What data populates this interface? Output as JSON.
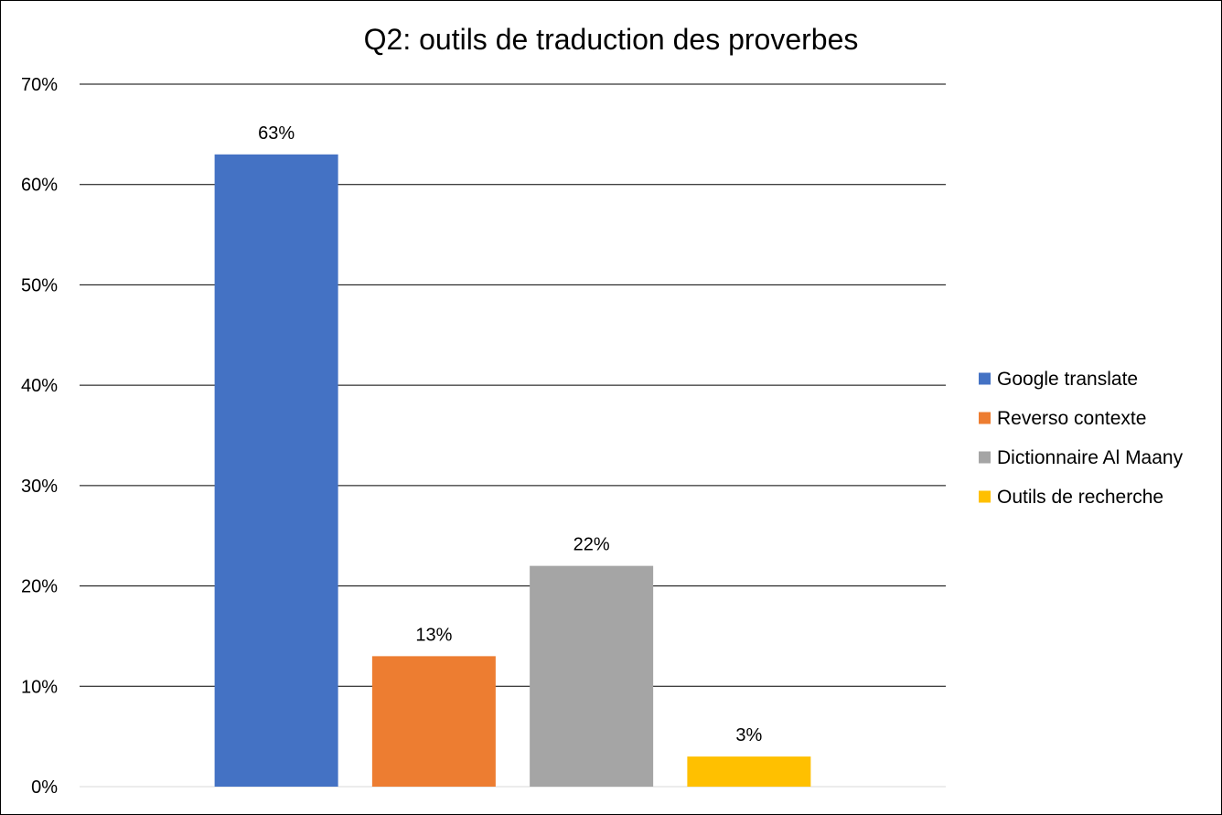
{
  "chart_data": {
    "type": "bar",
    "title": "Q2: outils de traduction des proverbes",
    "xlabel": "",
    "ylabel": "",
    "ylim": [
      0,
      70
    ],
    "yticks": [
      0,
      10,
      20,
      30,
      40,
      50,
      60,
      70
    ],
    "ytick_labels": [
      "0%",
      "10%",
      "20%",
      "30%",
      "40%",
      "50%",
      "60%",
      "70%"
    ],
    "grid": true,
    "legend_position": "right",
    "series": [
      {
        "name": "Google translate",
        "value": 63,
        "label": "63%",
        "color": "#4472C4"
      },
      {
        "name": "Reverso contexte",
        "value": 13,
        "label": "13%",
        "color": "#ED7D31"
      },
      {
        "name": "Dictionnaire Al Maany",
        "value": 22,
        "label": "22%",
        "color": "#A5A5A5"
      },
      {
        "name": "Outils de recherche",
        "value": 3,
        "label": "3%",
        "color": "#FFC000"
      }
    ]
  }
}
